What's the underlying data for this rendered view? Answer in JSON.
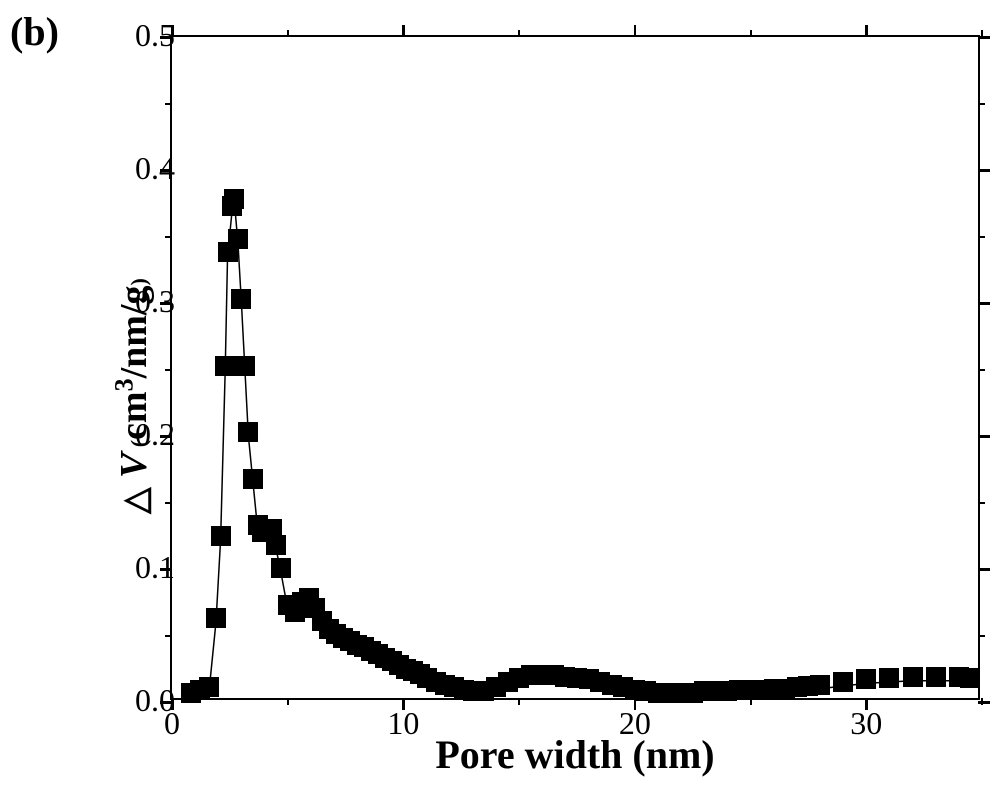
{
  "panel_label": "(b)",
  "chart": {
    "type": "scatter-line",
    "x_label": "Pore width (nm)",
    "y_label_parts": {
      "triangle": "△",
      "V": "V",
      "sub_open": " (",
      "unit": "cm",
      "sup3": "3",
      "rest": "/nm/g",
      "sub_close": ")"
    },
    "x_min": 0,
    "x_max": 35,
    "y_min": 0,
    "y_max": 0.5,
    "x_major_ticks": [
      0,
      10,
      20,
      30
    ],
    "x_minor_ticks": [
      5,
      15,
      25,
      35
    ],
    "y_major_ticks": [
      0.0,
      0.1,
      0.2,
      0.3,
      0.4,
      0.5
    ],
    "y_minor_ticks": [
      0.05,
      0.15,
      0.25,
      0.35,
      0.45
    ],
    "x_tick_labels": [
      "0",
      "10",
      "20",
      "30"
    ],
    "y_tick_labels": [
      "0.0",
      "0.1",
      "0.2",
      "0.3",
      "0.4",
      "0.5"
    ],
    "marker_color": "#000000",
    "marker_size": 20,
    "line_color": "#000000",
    "line_width": 1.5,
    "background_color": "#ffffff",
    "axis_color": "#000000",
    "axis_width": 2.5,
    "label_fontsize": 32,
    "axis_title_fontsize": 40,
    "panel_label_fontsize": 40,
    "font_family": "Times New Roman",
    "data": [
      [
        0.8,
        0.004
      ],
      [
        1.2,
        0.006
      ],
      [
        1.6,
        0.008
      ],
      [
        1.9,
        0.06
      ],
      [
        2.1,
        0.122
      ],
      [
        2.3,
        0.25
      ],
      [
        2.4,
        0.335
      ],
      [
        2.6,
        0.37
      ],
      [
        2.7,
        0.375
      ],
      [
        2.85,
        0.345
      ],
      [
        3.0,
        0.3
      ],
      [
        3.15,
        0.25
      ],
      [
        3.3,
        0.2
      ],
      [
        3.5,
        0.165
      ],
      [
        3.7,
        0.13
      ],
      [
        3.9,
        0.125
      ],
      [
        4.1,
        0.127
      ],
      [
        4.3,
        0.127
      ],
      [
        4.5,
        0.115
      ],
      [
        4.7,
        0.098
      ],
      [
        5.0,
        0.07
      ],
      [
        5.3,
        0.065
      ],
      [
        5.6,
        0.072
      ],
      [
        5.9,
        0.075
      ],
      [
        6.2,
        0.068
      ],
      [
        6.5,
        0.058
      ],
      [
        6.8,
        0.052
      ],
      [
        7.1,
        0.048
      ],
      [
        7.4,
        0.045
      ],
      [
        7.7,
        0.043
      ],
      [
        8.0,
        0.04
      ],
      [
        8.3,
        0.038
      ],
      [
        8.6,
        0.035
      ],
      [
        8.9,
        0.033
      ],
      [
        9.2,
        0.03
      ],
      [
        9.5,
        0.028
      ],
      [
        9.8,
        0.025
      ],
      [
        10.1,
        0.022
      ],
      [
        10.4,
        0.02
      ],
      [
        10.7,
        0.018
      ],
      [
        11.0,
        0.015
      ],
      [
        11.4,
        0.012
      ],
      [
        11.8,
        0.01
      ],
      [
        12.2,
        0.008
      ],
      [
        12.6,
        0.006
      ],
      [
        13.0,
        0.005
      ],
      [
        13.5,
        0.005
      ],
      [
        14.0,
        0.008
      ],
      [
        14.5,
        0.012
      ],
      [
        15.0,
        0.015
      ],
      [
        15.5,
        0.017
      ],
      [
        16.0,
        0.017
      ],
      [
        16.5,
        0.017
      ],
      [
        17.0,
        0.016
      ],
      [
        17.5,
        0.015
      ],
      [
        18.0,
        0.014
      ],
      [
        18.5,
        0.012
      ],
      [
        19.0,
        0.01
      ],
      [
        19.5,
        0.008
      ],
      [
        20.0,
        0.006
      ],
      [
        20.5,
        0.005
      ],
      [
        21.0,
        0.004
      ],
      [
        21.5,
        0.004
      ],
      [
        22.0,
        0.004
      ],
      [
        22.5,
        0.004
      ],
      [
        23.0,
        0.005
      ],
      [
        23.5,
        0.005
      ],
      [
        24.0,
        0.005
      ],
      [
        24.5,
        0.006
      ],
      [
        25.0,
        0.006
      ],
      [
        25.5,
        0.006
      ],
      [
        26.0,
        0.007
      ],
      [
        26.5,
        0.007
      ],
      [
        27.0,
        0.008
      ],
      [
        27.5,
        0.009
      ],
      [
        28.0,
        0.01
      ],
      [
        29.0,
        0.012
      ],
      [
        30.0,
        0.014
      ],
      [
        31.0,
        0.015
      ],
      [
        32.0,
        0.016
      ],
      [
        33.0,
        0.016
      ],
      [
        34.0,
        0.016
      ],
      [
        34.5,
        0.015
      ]
    ]
  }
}
